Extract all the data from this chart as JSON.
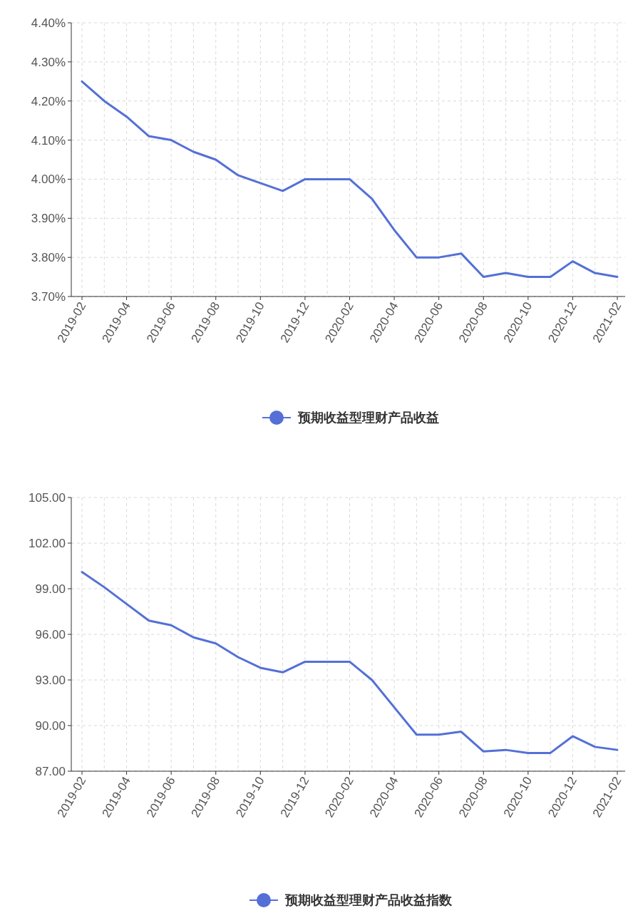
{
  "chart_data": [
    {
      "type": "line",
      "categories": [
        "2019-02",
        null,
        "2019-04",
        null,
        "2019-06",
        null,
        "2019-08",
        null,
        "2019-10",
        null,
        "2019-12",
        null,
        "2020-02",
        null,
        "2020-04",
        null,
        "2020-06",
        null,
        "2020-08",
        null,
        "2020-10",
        null,
        "2020-12",
        null,
        "2021-02"
      ],
      "series": [
        {
          "name": "预期收益型理财产品收益",
          "color": "#5470d6",
          "values": [
            4.25,
            4.2,
            4.16,
            4.11,
            4.1,
            4.07,
            4.05,
            4.01,
            3.99,
            3.97,
            4.0,
            4.0,
            4.0,
            3.95,
            3.87,
            3.8,
            3.8,
            3.81,
            3.75,
            3.76,
            3.75,
            3.75,
            3.79,
            3.76,
            3.75
          ]
        }
      ],
      "ylim": [
        3.7,
        4.4
      ],
      "yticks": [
        {
          "value": 3.7,
          "label": "3.70%"
        },
        {
          "value": 3.8,
          "label": "3.80%"
        },
        {
          "value": 3.9,
          "label": "3.90%"
        },
        {
          "value": 4.0,
          "label": "4.00%"
        },
        {
          "value": 4.1,
          "label": "4.10%"
        },
        {
          "value": 4.2,
          "label": "4.20%"
        },
        {
          "value": 4.3,
          "label": "4.30%"
        },
        {
          "value": 4.4,
          "label": "4.40%"
        }
      ],
      "grid": true,
      "legend": "bottom"
    },
    {
      "type": "line",
      "categories": [
        "2019-02",
        null,
        "2019-04",
        null,
        "2019-06",
        null,
        "2019-08",
        null,
        "2019-10",
        null,
        "2019-12",
        null,
        "2020-02",
        null,
        "2020-04",
        null,
        "2020-06",
        null,
        "2020-08",
        null,
        "2020-10",
        null,
        "2020-12",
        null,
        "2021-02"
      ],
      "series": [
        {
          "name": "预期收益型理财产品收益指数",
          "color": "#5470d6",
          "values": [
            100.1,
            99.1,
            98.0,
            96.9,
            96.6,
            95.8,
            95.4,
            94.5,
            93.8,
            93.5,
            94.2,
            94.2,
            94.2,
            93.0,
            91.2,
            89.4,
            89.4,
            89.6,
            88.3,
            88.4,
            88.2,
            88.2,
            89.3,
            88.6,
            88.4
          ]
        }
      ],
      "ylim": [
        87,
        105
      ],
      "yticks": [
        {
          "value": 87,
          "label": "87.00"
        },
        {
          "value": 90,
          "label": "90.00"
        },
        {
          "value": 93,
          "label": "93.00"
        },
        {
          "value": 96,
          "label": "96.00"
        },
        {
          "value": 99,
          "label": "99.00"
        },
        {
          "value": 102,
          "label": "102.00"
        },
        {
          "value": 105,
          "label": "105.00"
        }
      ],
      "grid": true,
      "legend": "bottom"
    }
  ]
}
